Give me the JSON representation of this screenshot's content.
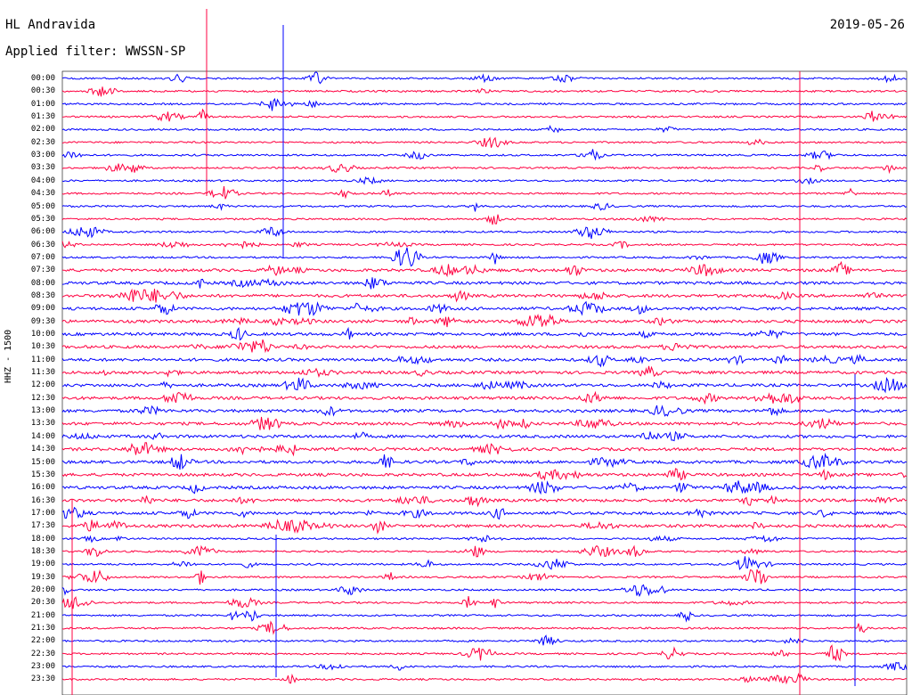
{
  "header": {
    "station": "HL Andravida",
    "filter": "Applied filter: WWSSN-SP",
    "date": "2019-05-26"
  },
  "axis": {
    "ylabel": "HHZ - 1500"
  },
  "colors": {
    "trace_a": "#0000ff",
    "trace_b": "#ff0040",
    "background": "#ffffff"
  },
  "rows": [
    {
      "time": "00:00",
      "color": "trace_a"
    },
    {
      "time": "00:30",
      "color": "trace_b"
    },
    {
      "time": "01:00",
      "color": "trace_a"
    },
    {
      "time": "01:30",
      "color": "trace_b"
    },
    {
      "time": "02:00",
      "color": "trace_a"
    },
    {
      "time": "02:30",
      "color": "trace_b"
    },
    {
      "time": "03:00",
      "color": "trace_a"
    },
    {
      "time": "03:30",
      "color": "trace_b"
    },
    {
      "time": "04:00",
      "color": "trace_a"
    },
    {
      "time": "04:30",
      "color": "trace_b"
    },
    {
      "time": "05:00",
      "color": "trace_a"
    },
    {
      "time": "05:30",
      "color": "trace_b"
    },
    {
      "time": "06:00",
      "color": "trace_a"
    },
    {
      "time": "06:30",
      "color": "trace_b"
    },
    {
      "time": "07:00",
      "color": "trace_a"
    },
    {
      "time": "07:30",
      "color": "trace_b"
    },
    {
      "time": "08:00",
      "color": "trace_a"
    },
    {
      "time": "08:30",
      "color": "trace_b"
    },
    {
      "time": "09:00",
      "color": "trace_a"
    },
    {
      "time": "09:30",
      "color": "trace_b"
    },
    {
      "time": "10:00",
      "color": "trace_a"
    },
    {
      "time": "10:30",
      "color": "trace_b"
    },
    {
      "time": "11:00",
      "color": "trace_a"
    },
    {
      "time": "11:30",
      "color": "trace_b"
    },
    {
      "time": "12:00",
      "color": "trace_a"
    },
    {
      "time": "12:30",
      "color": "trace_b"
    },
    {
      "time": "13:00",
      "color": "trace_a"
    },
    {
      "time": "13:30",
      "color": "trace_b"
    },
    {
      "time": "14:00",
      "color": "trace_a"
    },
    {
      "time": "14:30",
      "color": "trace_b"
    },
    {
      "time": "15:00",
      "color": "trace_a"
    },
    {
      "time": "15:30",
      "color": "trace_b"
    },
    {
      "time": "16:00",
      "color": "trace_a"
    },
    {
      "time": "16:30",
      "color": "trace_b"
    },
    {
      "time": "17:00",
      "color": "trace_a"
    },
    {
      "time": "17:30",
      "color": "trace_b"
    },
    {
      "time": "18:00",
      "color": "trace_a"
    },
    {
      "time": "18:30",
      "color": "trace_b"
    },
    {
      "time": "19:00",
      "color": "trace_a"
    },
    {
      "time": "19:30",
      "color": "trace_b"
    },
    {
      "time": "20:00",
      "color": "trace_a"
    },
    {
      "time": "20:30",
      "color": "trace_b"
    },
    {
      "time": "21:00",
      "color": "trace_a"
    },
    {
      "time": "21:30",
      "color": "trace_b"
    },
    {
      "time": "22:00",
      "color": "trace_a"
    },
    {
      "time": "22:30",
      "color": "trace_b"
    },
    {
      "time": "23:00",
      "color": "trace_a"
    },
    {
      "time": "23:30",
      "color": "trace_b"
    }
  ]
}
